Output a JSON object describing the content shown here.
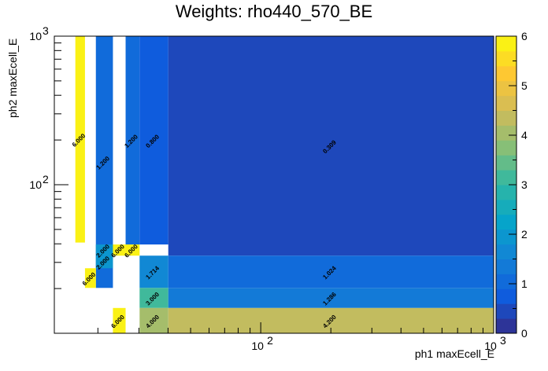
{
  "chart_data": {
    "type": "heatmap",
    "title": "Weights: rho440_570_BE",
    "xlabel": "ph1 maxEcell_E",
    "ylabel": "ph2 maxEcell_E",
    "x_scale": "log",
    "y_scale": "log",
    "xlim": [
      13,
      1000
    ],
    "ylim": [
      10,
      1000
    ],
    "x_tick_labels": [
      {
        "value": 100,
        "label": "10",
        "exp": "2"
      },
      {
        "value": 1000,
        "label": "10",
        "exp": "3"
      }
    ],
    "y_tick_labels": [
      {
        "value": 100,
        "label": "10",
        "exp": "2"
      },
      {
        "value": 1000,
        "label": "10",
        "exp": "3"
      }
    ],
    "colorbar": {
      "min": 0,
      "max": 6,
      "tick_labels": [
        "0",
        "1",
        "2",
        "3",
        "4",
        "5",
        "6"
      ]
    },
    "cells": [
      {
        "x0": 16.0,
        "x1": 17.6,
        "y0": 40.8,
        "y1": 1000,
        "value": 6.0,
        "label": "6.000"
      },
      {
        "x0": 19.6,
        "x1": 23.2,
        "y0": 20.2,
        "y1": 1000,
        "value": 1.2,
        "label": "1.200"
      },
      {
        "x0": 26.3,
        "x1": 30.2,
        "y0": 39.6,
        "y1": 1000,
        "value": 1.2,
        "label": "1.200"
      },
      {
        "x0": 30.2,
        "x1": 40.1,
        "y0": 39.6,
        "y1": 1000,
        "value": 0.8,
        "label": "0.800"
      },
      {
        "x0": 40.1,
        "x1": 1000,
        "y0": 33.3,
        "y1": 1000,
        "value": 0.309,
        "label": "0.309"
      },
      {
        "x0": 19.6,
        "x1": 23.2,
        "y0": 33.3,
        "y1": 39.6,
        "value": 2.0,
        "label": "2.000"
      },
      {
        "x0": 23.2,
        "x1": 26.3,
        "y0": 33.3,
        "y1": 39.6,
        "value": 6.0,
        "label": "6.000"
      },
      {
        "x0": 26.3,
        "x1": 30.2,
        "y0": 33.3,
        "y1": 39.6,
        "value": 6.0,
        "label": "6.000"
      },
      {
        "x0": 17.6,
        "x1": 19.6,
        "y0": 20.2,
        "y1": 27.4,
        "value": 6.0,
        "label": "6.000"
      },
      {
        "x0": 19.6,
        "x1": 23.2,
        "y0": 27.4,
        "y1": 33.3,
        "value": 2.0,
        "label": "2.000"
      },
      {
        "x0": 30.2,
        "x1": 40.1,
        "y0": 20.2,
        "y1": 33.3,
        "value": 1.714,
        "label": "1.714"
      },
      {
        "x0": 40.1,
        "x1": 1000,
        "y0": 20.2,
        "y1": 33.3,
        "value": 1.024,
        "label": "1.024"
      },
      {
        "x0": 30.2,
        "x1": 40.1,
        "y0": 14.8,
        "y1": 20.2,
        "value": 3.0,
        "label": "3.000"
      },
      {
        "x0": 40.1,
        "x1": 1000,
        "y0": 14.8,
        "y1": 20.2,
        "value": 1.286,
        "label": "1.286"
      },
      {
        "x0": 23.2,
        "x1": 26.3,
        "y0": 10.0,
        "y1": 14.8,
        "value": 6.0,
        "label": "6.000"
      },
      {
        "x0": 30.2,
        "x1": 40.1,
        "y0": 10.0,
        "y1": 14.8,
        "value": 4.0,
        "label": "4.000"
      },
      {
        "x0": 40.1,
        "x1": 1000,
        "y0": 10.0,
        "y1": 14.8,
        "value": 4.2,
        "label": "4.200"
      }
    ]
  }
}
